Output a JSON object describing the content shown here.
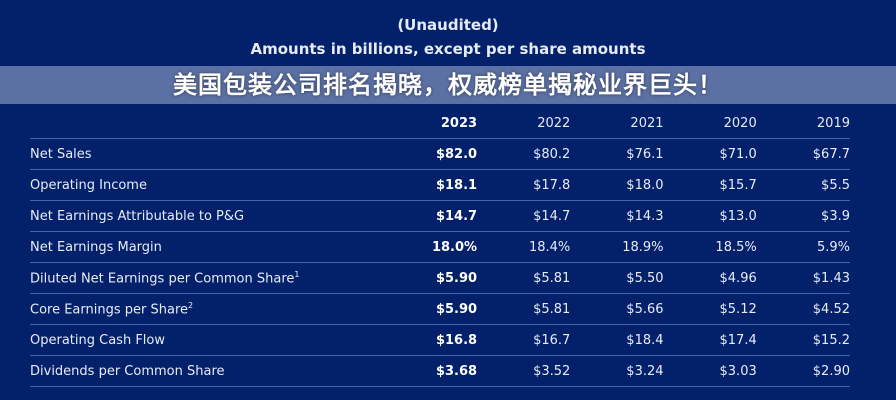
{
  "header": {
    "line1": "(Unaudited)",
    "line2": "Amounts in billions, except per share amounts"
  },
  "table": {
    "columns": [
      "",
      "2023",
      "2022",
      "2021",
      "2020",
      "2019"
    ],
    "rows": [
      {
        "label": "Net Sales",
        "sup": "",
        "values": [
          "$82.0",
          "$80.2",
          "$76.1",
          "$71.0",
          "$67.7"
        ]
      },
      {
        "label": "Operating Income",
        "sup": "",
        "values": [
          "$18.1",
          "$17.8",
          "$18.0",
          "$15.7",
          "$5.5"
        ]
      },
      {
        "label": "Net Earnings Attributable to P&G",
        "sup": "",
        "values": [
          "$14.7",
          "$14.7",
          "$14.3",
          "$13.0",
          "$3.9"
        ]
      },
      {
        "label": "Net Earnings Margin",
        "sup": "",
        "values": [
          "18.0%",
          "18.4%",
          "18.9%",
          "18.5%",
          "5.9%"
        ]
      },
      {
        "label": "Diluted Net Earnings per Common Share",
        "sup": "1",
        "values": [
          "$5.90",
          "$5.81",
          "$5.50",
          "$4.96",
          "$1.43"
        ]
      },
      {
        "label": "Core Earnings per Share",
        "sup": "2",
        "values": [
          "$5.90",
          "$5.81",
          "$5.66",
          "$5.12",
          "$4.52"
        ]
      },
      {
        "label": "Operating Cash Flow",
        "sup": "",
        "values": [
          "$16.8",
          "$16.7",
          "$18.4",
          "$17.4",
          "$15.2"
        ]
      },
      {
        "label": "Dividends per Common Share",
        "sup": "",
        "values": [
          "$3.68",
          "$3.52",
          "$3.24",
          "$3.03",
          "$2.90"
        ]
      }
    ]
  },
  "banner": {
    "text": "美国包装公司排名揭晓，权威榜单揭秘业界巨头！"
  }
}
